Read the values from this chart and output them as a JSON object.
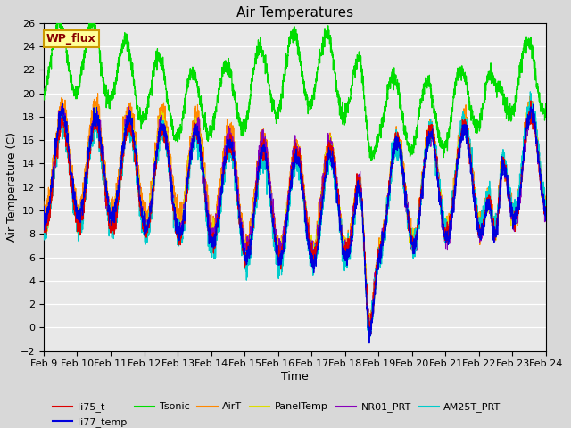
{
  "title": "Air Temperatures",
  "xlabel": "Time",
  "ylabel": "Air Temperature (C)",
  "ylim": [
    -2,
    26
  ],
  "xlim": [
    0,
    15
  ],
  "fig_bg": "#d8d8d8",
  "plot_bg": "#e8e8e8",
  "series": {
    "li75_t": {
      "color": "#dd0000",
      "lw": 0.8
    },
    "li77_temp": {
      "color": "#0000dd",
      "lw": 0.8
    },
    "Tsonic": {
      "color": "#00dd00",
      "lw": 0.9
    },
    "AirT": {
      "color": "#ff8800",
      "lw": 0.8
    },
    "PanelTemp": {
      "color": "#dddd00",
      "lw": 0.8
    },
    "NR01_PRT": {
      "color": "#8800bb",
      "lw": 0.8
    },
    "AM25T_PRT": {
      "color": "#00cccc",
      "lw": 0.9
    }
  },
  "xtick_labels": [
    "Feb 9",
    "Feb 10",
    "Feb 11",
    "Feb 12",
    "Feb 13",
    "Feb 14",
    "Feb 15",
    "Feb 16",
    "Feb 17",
    "Feb 18",
    "Feb 19",
    "Feb 20",
    "Feb 21",
    "Feb 22",
    "Feb 23",
    "Feb 24"
  ],
  "annotation_text": "WP_flux",
  "annotation_color": "#880000",
  "annotation_bg": "#ffff99",
  "annotation_border": "#cc9900"
}
